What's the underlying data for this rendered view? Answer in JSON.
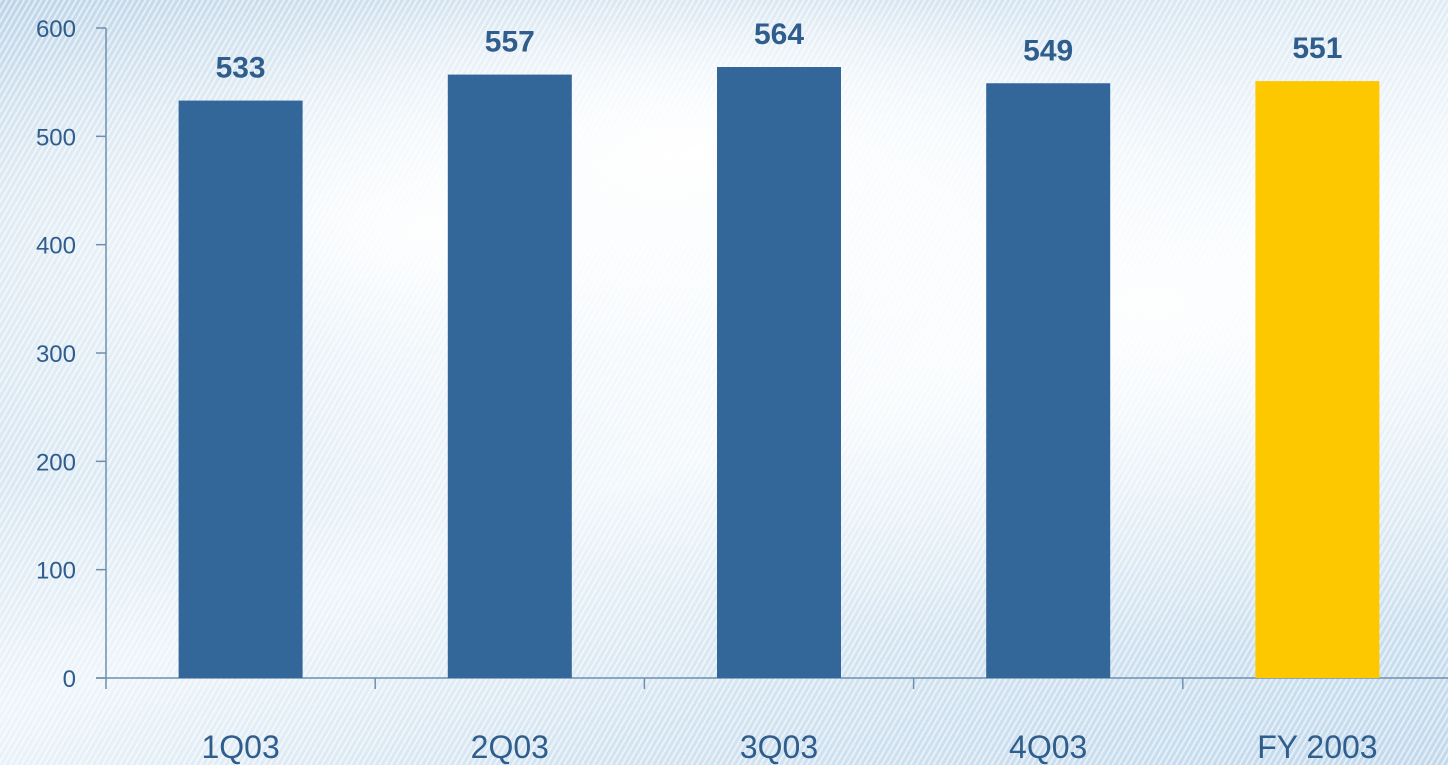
{
  "chart_data": {
    "type": "bar",
    "categories": [
      "1Q03",
      "2Q03",
      "3Q03",
      "4Q03",
      "FY 2003"
    ],
    "values": [
      533,
      557,
      564,
      549,
      551
    ],
    "data_labels": [
      "533",
      "557",
      "564",
      "549",
      "551"
    ],
    "title": "",
    "xlabel": "",
    "ylabel": "",
    "ylim": [
      0,
      600
    ],
    "yticks": [
      "0",
      "100",
      "200",
      "300",
      "400",
      "500",
      "600"
    ],
    "grid": false,
    "legend": "none",
    "colors": {
      "bar": "#336699",
      "highlight_bar": "#fdc800",
      "text": "#2f5d8c",
      "axis": "#6f8fae"
    },
    "highlight_category": "FY 2003"
  }
}
